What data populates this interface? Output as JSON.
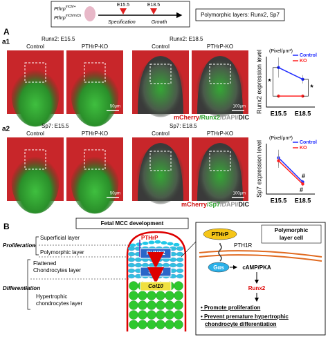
{
  "header": {
    "genotypes": [
      {
        "gene": "Pthrp",
        "allele": "mCh/+"
      },
      {
        "gene": "Pthrp",
        "allele": "mCh/mCh"
      }
    ],
    "timepoints": [
      "E15.5",
      "E18.5"
    ],
    "phases": [
      "Specification",
      "Growth"
    ],
    "note": "Polymorphic layers: Runx2, Sp7"
  },
  "panel_a": {
    "label": "A",
    "rows": [
      {
        "label": "a1",
        "titles": [
          "Runx2: E15.5",
          "Runx2: E18.5"
        ],
        "groups": [
          "Control",
          "PTHrP-KO",
          "Control",
          "PTHrP-KO"
        ],
        "scale_bars": [
          "50μm",
          "100μm"
        ],
        "stain": [
          "mCherry",
          "/Runx2",
          "/DAPI/",
          "DIC"
        ]
      },
      {
        "label": "a2",
        "titles": [
          "Sp7: E15.5",
          "Sp7: E18.5"
        ],
        "groups": [
          "Control",
          "PTHrP-KO",
          "Control",
          "PTHrP-KO"
        ],
        "scale_bars": [
          "50μm",
          "100μm"
        ],
        "stain": [
          "mCherry",
          "/Sp7",
          "/DAPI/",
          "DIC"
        ]
      }
    ]
  },
  "chart_data": [
    {
      "type": "line",
      "y_label": "Runx2 expression level",
      "y_unit": "(Pixel/μm²)",
      "categories": [
        "E15.5",
        "E18.5"
      ],
      "ylim": [
        0,
        0.6
      ],
      "series": [
        {
          "name": "Control",
          "color": "#1f2bff",
          "values": [
            0.47,
            0.33
          ],
          "errors": [
            0.12,
            0.05
          ]
        },
        {
          "name": "KO",
          "color": "#ff2020",
          "values": [
            0.13,
            0.13
          ],
          "errors": [
            0.02,
            0.02
          ]
        }
      ],
      "legend": "upper right",
      "annotations": [
        "*",
        "*"
      ]
    },
    {
      "type": "line",
      "y_label": "Sp7 expression level",
      "y_unit": "(Pixel/μm²)",
      "categories": [
        "E15.5",
        "E18.5"
      ],
      "ylim": [
        0,
        0.5
      ],
      "series": [
        {
          "name": "Control",
          "color": "#1f2bff",
          "values": [
            0.36,
            0.12
          ],
          "errors": [
            0.08,
            0.02
          ]
        },
        {
          "name": "KO",
          "color": "#ff2020",
          "values": [
            0.33,
            0.1
          ],
          "errors": [
            0.07,
            0.02
          ]
        }
      ],
      "legend": "upper right",
      "annotations": [
        "#",
        "#"
      ]
    }
  ],
  "panel_b": {
    "label": "B",
    "title": "Fetal MCC development",
    "phases": [
      "Proliferation",
      "Differentiation"
    ],
    "layers": [
      [
        "Superficial layer"
      ],
      [
        "Polymorphic layer"
      ],
      [
        "Flattened",
        "Chondrocytes layer"
      ],
      [
        "Hypertrophic",
        "chondrocytes layer"
      ]
    ],
    "markers": [
      "PTHrP",
      "RUNX2",
      "SOX9",
      "Col10"
    ],
    "cell": {
      "ligand": "PTHrP",
      "title": [
        "Polymorphic",
        "layer cell"
      ],
      "receptor": "PTH1R",
      "g_protein": "Gαs",
      "second_messenger": "cAMP/PKA",
      "target": "Runx2",
      "outcomes": [
        [
          "Promote proliferation"
        ],
        [
          "Prevent premature hypertrophic",
          "chondrocyte differentiation"
        ]
      ]
    }
  }
}
